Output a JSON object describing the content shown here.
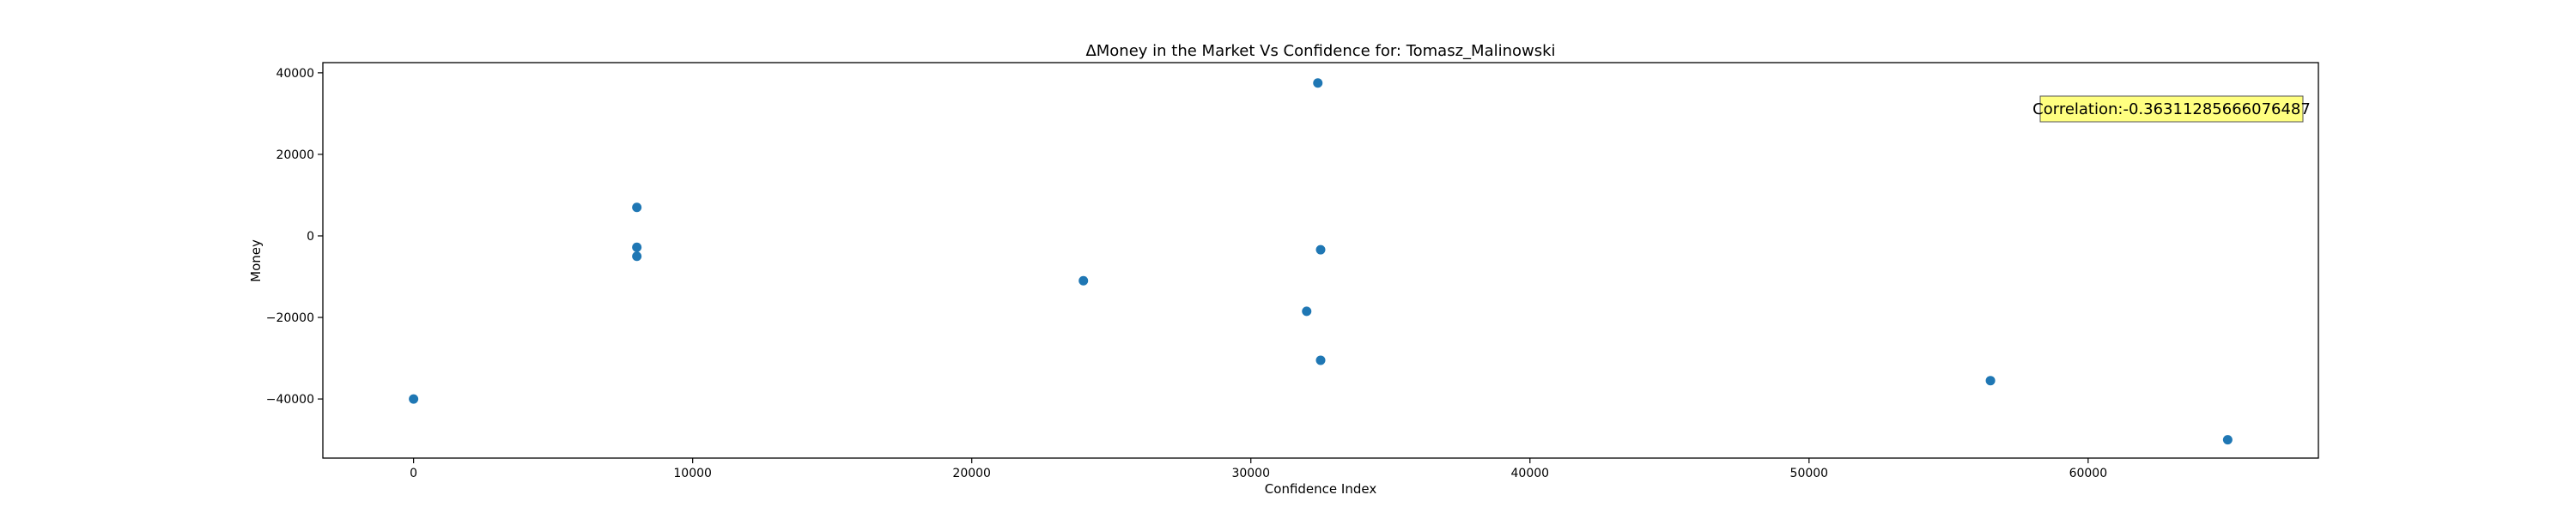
{
  "chart_data": {
    "type": "scatter",
    "title": "ΔMoney in the Market Vs Confidence for: Tomasz_Malinowski",
    "xlabel": "Confidence Index",
    "ylabel": "Money",
    "xlim": [
      -3250,
      68250
    ],
    "ylim": [
      -54500,
      42500
    ],
    "xticks": [
      0,
      10000,
      20000,
      30000,
      40000,
      50000,
      60000
    ],
    "yticks": [
      -40000,
      -20000,
      0,
      20000,
      40000
    ],
    "grid": false,
    "marker_color": "#1f77b4",
    "points": [
      {
        "x": 0,
        "y": -40000
      },
      {
        "x": 8000,
        "y": 7000
      },
      {
        "x": 8000,
        "y": -2800
      },
      {
        "x": 8000,
        "y": -5000
      },
      {
        "x": 24000,
        "y": -11000
      },
      {
        "x": 32000,
        "y": -18500
      },
      {
        "x": 32400,
        "y": 37500
      },
      {
        "x": 32500,
        "y": -3400
      },
      {
        "x": 32500,
        "y": -30500
      },
      {
        "x": 56500,
        "y": -35500
      },
      {
        "x": 65000,
        "y": -50000
      }
    ],
    "annotation": {
      "text": "Correlation:-0.36311285666076487",
      "background": "#ffff80",
      "placement": "top-right"
    }
  }
}
